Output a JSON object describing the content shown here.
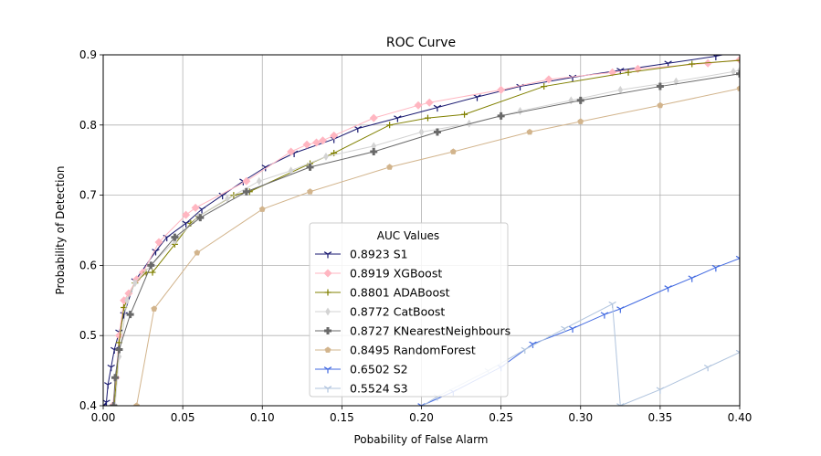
{
  "chart_data": {
    "type": "line",
    "title": "ROC Curve",
    "xlabel": "Pobability of False Alarm",
    "ylabel": "Probability of Detection",
    "xlim": [
      0.0,
      0.4
    ],
    "ylim": [
      0.4,
      0.9
    ],
    "xticks": [
      "0.00",
      "0.05",
      "0.10",
      "0.15",
      "0.20",
      "0.25",
      "0.30",
      "0.35",
      "0.40"
    ],
    "yticks": [
      "0.4",
      "0.5",
      "0.6",
      "0.7",
      "0.8",
      "0.9"
    ],
    "grid": true,
    "legend": {
      "title": "AUC Values",
      "placement": "lower-center"
    },
    "series": [
      {
        "name": "0.8923 S1",
        "color": "#191970",
        "marker": "tri",
        "x": [
          0.0,
          0.002,
          0.003,
          0.005,
          0.007,
          0.01,
          0.013,
          0.02,
          0.033,
          0.04,
          0.052,
          0.062,
          0.075,
          0.088,
          0.102,
          0.12,
          0.145,
          0.16,
          0.185,
          0.21,
          0.235,
          0.262,
          0.295,
          0.325,
          0.355,
          0.385,
          0.4
        ],
        "y": [
          0.4,
          0.405,
          0.43,
          0.455,
          0.48,
          0.505,
          0.53,
          0.578,
          0.62,
          0.64,
          0.66,
          0.68,
          0.7,
          0.72,
          0.74,
          0.76,
          0.78,
          0.795,
          0.81,
          0.825,
          0.84,
          0.855,
          0.868,
          0.878,
          0.888,
          0.898,
          0.905
        ]
      },
      {
        "name": "0.8919 XGBoost",
        "color": "#FFB6C1",
        "marker": "diamond",
        "x": [
          0.006,
          0.008,
          0.01,
          0.013,
          0.016,
          0.021,
          0.025,
          0.035,
          0.052,
          0.058,
          0.09,
          0.118,
          0.128,
          0.134,
          0.138,
          0.145,
          0.17,
          0.198,
          0.205,
          0.25,
          0.28,
          0.32,
          0.336,
          0.38,
          0.4
        ],
        "y": [
          0.4,
          0.44,
          0.5,
          0.55,
          0.56,
          0.58,
          0.59,
          0.633,
          0.672,
          0.682,
          0.72,
          0.762,
          0.772,
          0.775,
          0.778,
          0.785,
          0.81,
          0.828,
          0.832,
          0.85,
          0.865,
          0.875,
          0.88,
          0.888,
          0.893
        ]
      },
      {
        "name": "0.8801 ADABoost",
        "color": "#808000",
        "marker": "plus",
        "x": [
          0.007,
          0.01,
          0.013,
          0.02,
          0.027,
          0.031,
          0.045,
          0.055,
          0.06,
          0.082,
          0.092,
          0.13,
          0.145,
          0.18,
          0.204,
          0.227,
          0.277,
          0.33,
          0.37,
          0.4
        ],
        "y": [
          0.4,
          0.49,
          0.54,
          0.575,
          0.59,
          0.59,
          0.63,
          0.66,
          0.67,
          0.7,
          0.705,
          0.745,
          0.76,
          0.8,
          0.81,
          0.815,
          0.855,
          0.875,
          0.887,
          0.892
        ]
      },
      {
        "name": "0.8772 CatBoost",
        "color": "#D3D3D3",
        "marker": "thin_diamond",
        "x": [
          0.0075,
          0.01,
          0.015,
          0.02,
          0.03,
          0.045,
          0.06,
          0.078,
          0.098,
          0.118,
          0.14,
          0.17,
          0.2,
          0.23,
          0.262,
          0.294,
          0.325,
          0.36,
          0.396,
          0.4
        ],
        "y": [
          0.4,
          0.47,
          0.55,
          0.575,
          0.6,
          0.635,
          0.67,
          0.695,
          0.72,
          0.735,
          0.755,
          0.77,
          0.79,
          0.802,
          0.82,
          0.835,
          0.85,
          0.862,
          0.876,
          0.878
        ]
      },
      {
        "name": "0.8727 KNearestNeighbours",
        "color": "#696969",
        "marker": "plus_filled",
        "x": [
          0.0065,
          0.0075,
          0.01,
          0.017,
          0.03,
          0.045,
          0.061,
          0.09,
          0.13,
          0.17,
          0.21,
          0.25,
          0.3,
          0.35,
          0.4
        ],
        "y": [
          0.4,
          0.44,
          0.48,
          0.53,
          0.6,
          0.64,
          0.668,
          0.705,
          0.74,
          0.762,
          0.79,
          0.813,
          0.835,
          0.855,
          0.873
        ]
      },
      {
        "name": "0.8495 RandomForest",
        "color": "#D2B48C",
        "marker": "pentagon",
        "x": [
          0.021,
          0.032,
          0.059,
          0.1,
          0.13,
          0.18,
          0.22,
          0.268,
          0.3,
          0.35,
          0.4
        ],
        "y": [
          0.4,
          0.538,
          0.618,
          0.68,
          0.705,
          0.74,
          0.762,
          0.79,
          0.805,
          0.828,
          0.852
        ]
      },
      {
        "name": "0.6502 S2",
        "color": "#4169E1",
        "marker": "tri",
        "x": [
          0.2,
          0.22,
          0.25,
          0.27,
          0.295,
          0.315,
          0.325,
          0.355,
          0.37,
          0.385,
          0.4
        ],
        "y": [
          0.4,
          0.42,
          0.455,
          0.488,
          0.51,
          0.53,
          0.538,
          0.568,
          0.582,
          0.597,
          0.61
        ]
      },
      {
        "name": "0.5524 S3",
        "color": "#B0C4DE",
        "marker": "tri",
        "x": [
          0.19,
          0.21,
          0.242,
          0.265,
          0.29,
          0.32,
          0.325,
          0.35,
          0.38,
          0.4
        ],
        "y": [
          0.385,
          0.413,
          0.45,
          0.48,
          0.51,
          0.545,
          0.4,
          0.423,
          0.455,
          0.476
        ]
      }
    ]
  }
}
